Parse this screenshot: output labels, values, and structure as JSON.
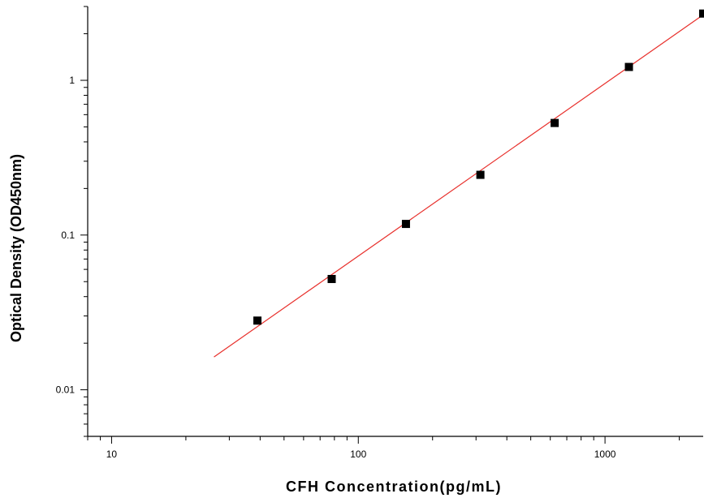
{
  "chart_data": {
    "type": "scatter",
    "xlabel": "CFH  Concentration(pg/mL)",
    "ylabel": "Optical Density (OD450nm)",
    "x_scale": "log",
    "y_scale": "log",
    "xlim": [
      8,
      2500
    ],
    "ylim": [
      0.005,
      3
    ],
    "x_ticks": [
      {
        "value": 10,
        "label": "10"
      },
      {
        "value": 100,
        "label": "100"
      },
      {
        "value": 1000,
        "label": "1000"
      }
    ],
    "y_ticks": [
      {
        "value": 0.01,
        "label": "0.01"
      },
      {
        "value": 0.1,
        "label": "0.1"
      },
      {
        "value": 1,
        "label": "1"
      }
    ],
    "grid": false,
    "series": [
      {
        "type": "scatter",
        "marker": "square",
        "color": "#000000",
        "x": [
          39,
          78,
          156,
          312.5,
          625,
          1250,
          2500
        ],
        "y": [
          0.028,
          0.052,
          0.118,
          0.245,
          0.53,
          1.22,
          2.7
        ]
      },
      {
        "type": "line",
        "color": "#e8302c",
        "x": [
          26,
          2500
        ],
        "y": [
          0.0163,
          2.65
        ]
      }
    ]
  }
}
